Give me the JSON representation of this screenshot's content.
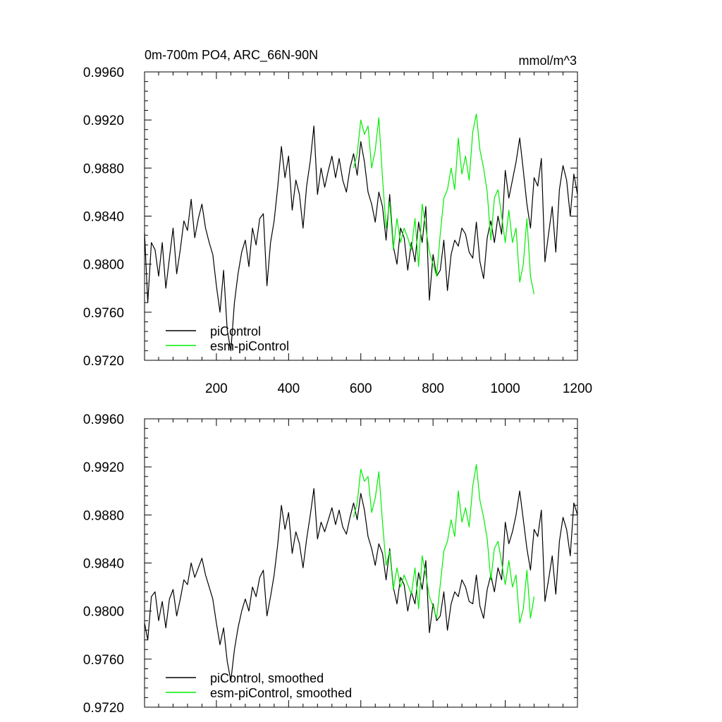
{
  "chart_data": [
    {
      "type": "line",
      "title": "0m-700m PO4, ARC_66N-90N",
      "units": "mmol/m^3",
      "xlim": [
        1,
        1200
      ],
      "ylim": [
        0.972,
        0.996
      ],
      "x_ticks": [
        200,
        400,
        600,
        800,
        1000,
        1200
      ],
      "x_tick_labels": [
        "200",
        "400",
        "600",
        "800",
        "1000",
        "1200"
      ],
      "y_ticks": [
        0.972,
        0.976,
        0.98,
        0.984,
        0.988,
        0.992,
        0.996
      ],
      "y_tick_labels": [
        "0.9720",
        "0.9760",
        "0.9800",
        "0.9840",
        "0.9880",
        "0.9920",
        "0.9960"
      ],
      "legend_position": "bottom-left",
      "series": [
        {
          "name": "piControl",
          "color": "#000000",
          "x": [
            1,
            10,
            20,
            30,
            40,
            50,
            60,
            70,
            80,
            90,
            100,
            110,
            120,
            130,
            140,
            150,
            160,
            170,
            180,
            190,
            200,
            210,
            220,
            230,
            240,
            250,
            260,
            270,
            280,
            290,
            300,
            310,
            320,
            330,
            340,
            350,
            360,
            370,
            380,
            390,
            400,
            410,
            420,
            430,
            440,
            450,
            460,
            470,
            480,
            490,
            500,
            510,
            520,
            530,
            540,
            550,
            560,
            570,
            580,
            590,
            600,
            610,
            620,
            630,
            640,
            650,
            660,
            670,
            680,
            690,
            700,
            710,
            720,
            730,
            740,
            750,
            760,
            770,
            780,
            790,
            800,
            810,
            820,
            830,
            840,
            850,
            860,
            870,
            880,
            890,
            900,
            910,
            920,
            930,
            940,
            950,
            960,
            970,
            980,
            990,
            1000,
            1010,
            1020,
            1030,
            1040,
            1050,
            1060,
            1070,
            1080,
            1090,
            1100,
            1110,
            1120,
            1130,
            1140,
            1150,
            1160,
            1170,
            1180,
            1190,
            1200
          ],
          "values": [
            0.9826,
            0.9768,
            0.9818,
            0.9812,
            0.979,
            0.9818,
            0.978,
            0.9805,
            0.983,
            0.9792,
            0.9812,
            0.9836,
            0.9828,
            0.9854,
            0.9822,
            0.9838,
            0.985,
            0.983,
            0.9818,
            0.9808,
            0.9782,
            0.976,
            0.9795,
            0.9745,
            0.9728,
            0.9768,
            0.9792,
            0.981,
            0.982,
            0.9798,
            0.983,
            0.9816,
            0.9838,
            0.9842,
            0.9782,
            0.9818,
            0.9836,
            0.9865,
            0.9898,
            0.9872,
            0.989,
            0.9845,
            0.987,
            0.9858,
            0.983,
            0.9865,
            0.9886,
            0.9915,
            0.9858,
            0.988,
            0.9864,
            0.9878,
            0.989,
            0.9872,
            0.9888,
            0.987,
            0.986,
            0.988,
            0.9892,
            0.9874,
            0.9902,
            0.9885,
            0.986,
            0.985,
            0.9835,
            0.986,
            0.9848,
            0.982,
            0.9858,
            0.9815,
            0.98,
            0.983,
            0.9822,
            0.9795,
            0.9818,
            0.9802,
            0.9835,
            0.9818,
            0.9848,
            0.977,
            0.9808,
            0.979,
            0.9795,
            0.982,
            0.9778,
            0.9808,
            0.982,
            0.9815,
            0.983,
            0.9825,
            0.981,
            0.9805,
            0.9835,
            0.9802,
            0.9788,
            0.9822,
            0.9836,
            0.9818,
            0.984,
            0.9825,
            0.9878,
            0.9855,
            0.987,
            0.9885,
            0.9905,
            0.9878,
            0.985,
            0.983,
            0.9872,
            0.9865,
            0.9888,
            0.9802,
            0.9825,
            0.9848,
            0.981,
            0.9862,
            0.9882,
            0.987,
            0.984,
            0.9875,
            0.9858
          ]
        },
        {
          "name": "esm-piControl",
          "color": "#00ee00",
          "x": [
            580,
            590,
            600,
            610,
            620,
            630,
            640,
            650,
            660,
            670,
            680,
            690,
            700,
            710,
            720,
            730,
            740,
            750,
            760,
            770,
            780,
            790,
            800,
            810,
            820,
            830,
            840,
            850,
            860,
            870,
            880,
            890,
            900,
            910,
            920,
            930,
            940,
            950,
            960,
            970,
            980,
            990,
            1000,
            1010,
            1020,
            1030,
            1040,
            1050,
            1060,
            1070,
            1080
          ],
          "values": [
            0.988,
            0.9892,
            0.992,
            0.9908,
            0.9915,
            0.988,
            0.9895,
            0.9922,
            0.9872,
            0.983,
            0.9852,
            0.9812,
            0.9838,
            0.9818,
            0.983,
            0.9822,
            0.9812,
            0.9838,
            0.9798,
            0.985,
            0.983,
            0.981,
            0.98,
            0.979,
            0.9825,
            0.9855,
            0.9862,
            0.988,
            0.9862,
            0.9905,
            0.9875,
            0.989,
            0.987,
            0.991,
            0.9925,
            0.9895,
            0.988,
            0.986,
            0.982,
            0.9855,
            0.9862,
            0.984,
            0.9818,
            0.9845,
            0.9818,
            0.983,
            0.9785,
            0.98,
            0.9838,
            0.979,
            0.9775
          ]
        }
      ]
    },
    {
      "type": "line",
      "title": "",
      "xlim": [
        1,
        1200
      ],
      "ylim": [
        0.972,
        0.996
      ],
      "y_ticks": [
        0.972,
        0.976,
        0.98,
        0.984,
        0.988,
        0.992,
        0.996
      ],
      "y_tick_labels": [
        "0.9720",
        "0.9760",
        "0.9800",
        "0.9840",
        "0.9880",
        "0.9920",
        "0.9960"
      ],
      "legend_position": "bottom-left",
      "series": [
        {
          "name": "piControl, smoothed",
          "color": "#000000",
          "x": [
            1,
            10,
            20,
            30,
            40,
            50,
            60,
            70,
            80,
            90,
            100,
            110,
            120,
            130,
            140,
            150,
            160,
            170,
            180,
            190,
            200,
            210,
            220,
            230,
            240,
            250,
            260,
            270,
            280,
            290,
            300,
            310,
            320,
            330,
            340,
            350,
            360,
            370,
            380,
            390,
            400,
            410,
            420,
            430,
            440,
            450,
            460,
            470,
            480,
            490,
            500,
            510,
            520,
            530,
            540,
            550,
            560,
            570,
            580,
            590,
            600,
            610,
            620,
            630,
            640,
            650,
            660,
            670,
            680,
            690,
            700,
            710,
            720,
            730,
            740,
            750,
            760,
            770,
            780,
            790,
            800,
            810,
            820,
            830,
            840,
            850,
            860,
            870,
            880,
            890,
            900,
            910,
            920,
            930,
            940,
            950,
            960,
            970,
            980,
            990,
            1000,
            1010,
            1020,
            1030,
            1040,
            1050,
            1060,
            1070,
            1080,
            1090,
            1100,
            1110,
            1120,
            1130,
            1140,
            1150,
            1160,
            1170,
            1180,
            1190,
            1200
          ],
          "values": [
            0.979,
            0.9776,
            0.9812,
            0.9816,
            0.9792,
            0.9808,
            0.9786,
            0.981,
            0.9818,
            0.9796,
            0.981,
            0.9826,
            0.9822,
            0.984,
            0.9828,
            0.9836,
            0.9844,
            0.983,
            0.982,
            0.981,
            0.979,
            0.9772,
            0.9786,
            0.9758,
            0.9742,
            0.9768,
            0.9786,
            0.98,
            0.981,
            0.98,
            0.982,
            0.9812,
            0.9828,
            0.9834,
            0.9796,
            0.9812,
            0.983,
            0.9856,
            0.9888,
            0.9868,
            0.9882,
            0.9848,
            0.9866,
            0.9856,
            0.9836,
            0.986,
            0.988,
            0.9902,
            0.986,
            0.9874,
            0.9866,
            0.9876,
            0.9886,
            0.9872,
            0.9884,
            0.987,
            0.9864,
            0.9878,
            0.989,
            0.9876,
            0.9898,
            0.9884,
            0.9862,
            0.9852,
            0.9838,
            0.9856,
            0.9848,
            0.9826,
            0.9852,
            0.982,
            0.9806,
            0.9828,
            0.9822,
            0.98,
            0.9816,
            0.9806,
            0.9832,
            0.9818,
            0.9842,
            0.9782,
            0.9806,
            0.9792,
            0.9796,
            0.9816,
            0.9784,
            0.9806,
            0.9816,
            0.9812,
            0.9826,
            0.982,
            0.9808,
            0.9806,
            0.983,
            0.9804,
            0.9794,
            0.9818,
            0.983,
            0.9816,
            0.9836,
            0.9826,
            0.9874,
            0.9856,
            0.9866,
            0.988,
            0.99,
            0.9876,
            0.9852,
            0.9834,
            0.9868,
            0.9862,
            0.9884,
            0.9808,
            0.9826,
            0.9846,
            0.9814,
            0.9858,
            0.9878,
            0.9868,
            0.9846,
            0.989,
            0.988
          ]
        },
        {
          "name": "esm-piControl, smoothed",
          "color": "#00ee00",
          "x": [
            580,
            590,
            600,
            610,
            620,
            630,
            640,
            650,
            660,
            670,
            680,
            690,
            700,
            710,
            720,
            730,
            740,
            750,
            760,
            770,
            780,
            790,
            800,
            810,
            820,
            830,
            840,
            850,
            860,
            870,
            880,
            890,
            900,
            910,
            920,
            930,
            940,
            950,
            960,
            970,
            980,
            990,
            1000,
            1010,
            1020,
            1030,
            1040,
            1050,
            1060,
            1070,
            1080
          ],
          "values": [
            0.9878,
            0.989,
            0.9918,
            0.9908,
            0.9912,
            0.9882,
            0.9894,
            0.9916,
            0.9874,
            0.9838,
            0.985,
            0.9818,
            0.9836,
            0.982,
            0.983,
            0.9822,
            0.9814,
            0.9836,
            0.9802,
            0.9846,
            0.983,
            0.9812,
            0.9804,
            0.9794,
            0.9822,
            0.985,
            0.9858,
            0.9876,
            0.9862,
            0.99,
            0.9874,
            0.9886,
            0.987,
            0.9904,
            0.9922,
            0.9892,
            0.9878,
            0.986,
            0.9826,
            0.9852,
            0.9858,
            0.984,
            0.9822,
            0.9842,
            0.982,
            0.983,
            0.979,
            0.9802,
            0.9834,
            0.9794,
            0.9812
          ]
        }
      ]
    }
  ]
}
